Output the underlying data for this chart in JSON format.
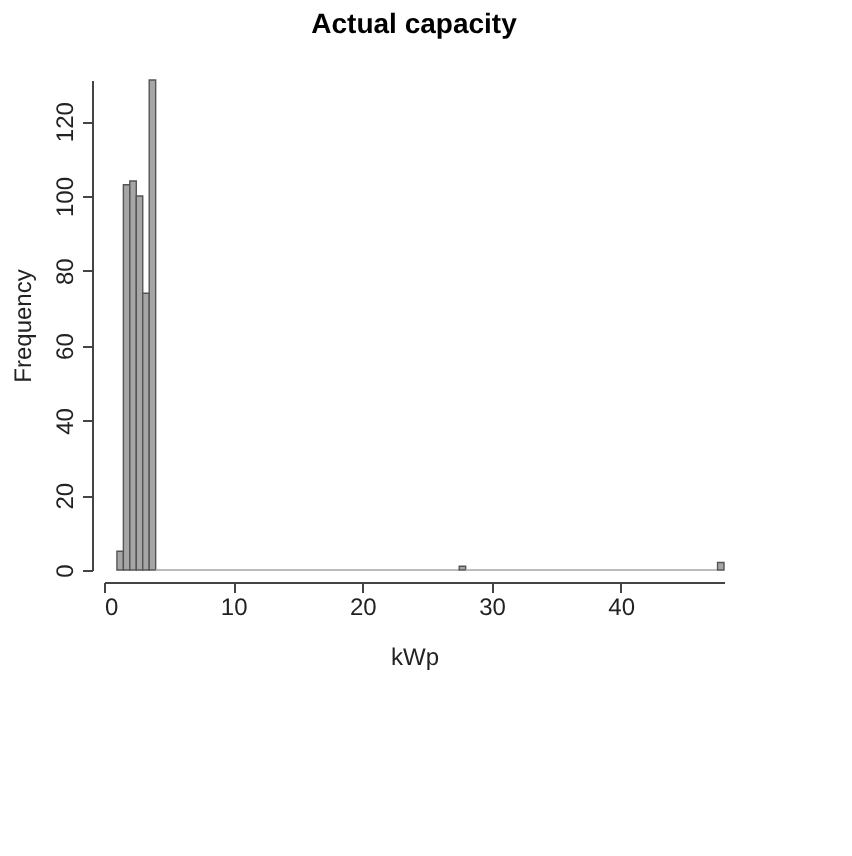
{
  "chart_data": {
    "type": "histogram",
    "title": "Actual capacity",
    "xlabel": "kWp",
    "ylabel": "Frequency",
    "bins": [
      1,
      1.5,
      2,
      2.5,
      3,
      3.5,
      4,
      27.5,
      28,
      47.5,
      48
    ],
    "values": [
      5,
      103,
      104,
      100,
      74,
      131,
      0,
      1,
      0,
      2
    ],
    "color": "#a6a6a6",
    "xlim": [
      0,
      48
    ],
    "xticks": [
      0,
      10,
      20,
      30,
      40
    ],
    "ylim": [
      0,
      131
    ],
    "yticks": [
      0,
      20,
      40,
      60,
      80,
      100,
      120
    ],
    "grid": false
  }
}
